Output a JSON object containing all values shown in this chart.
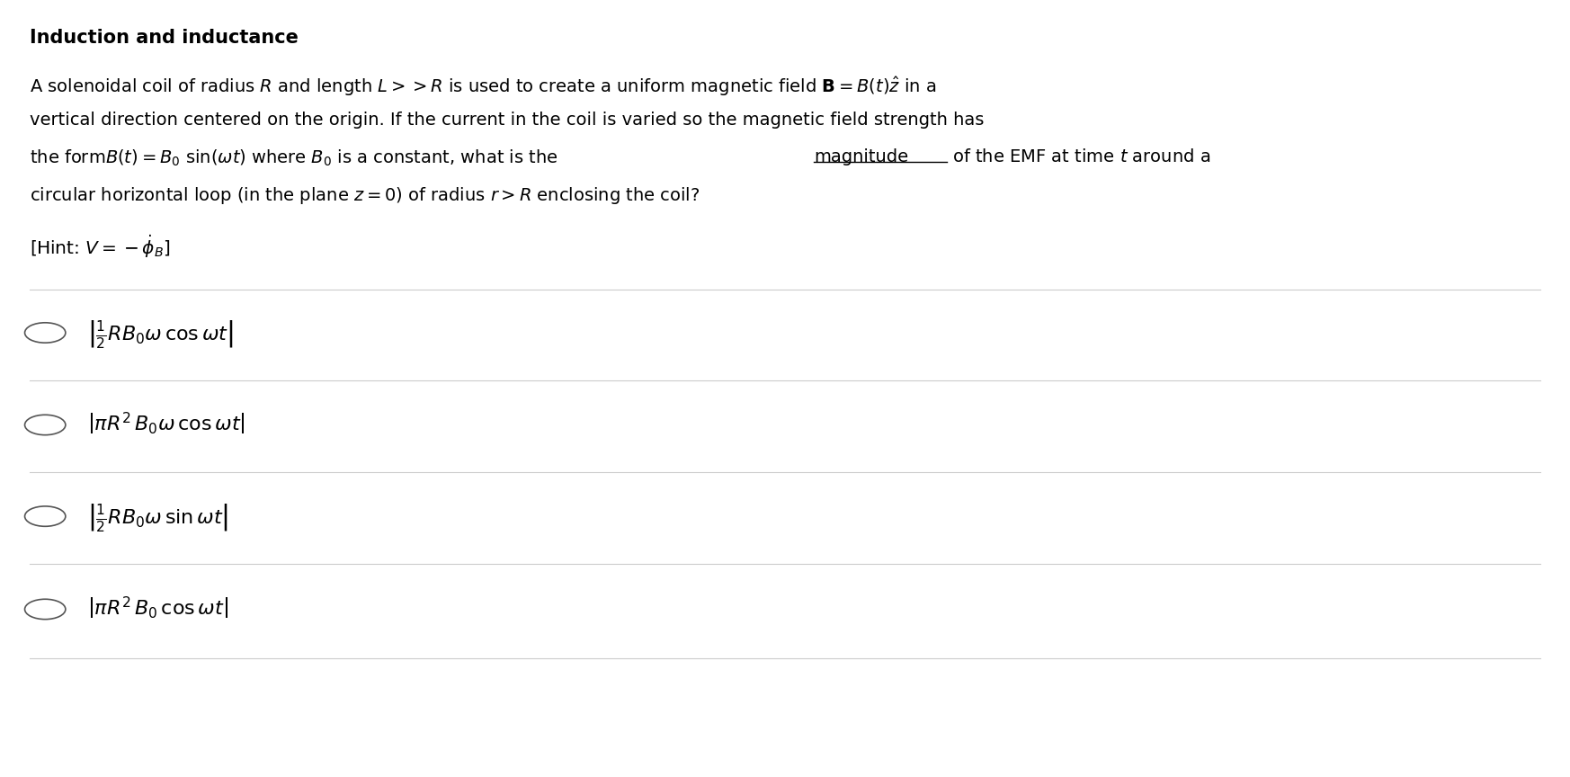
{
  "bg_color": "#ffffff",
  "title": "Induction and inductance",
  "figsize": [
    17.46,
    8.64
  ],
  "dpi": 100,
  "title_fontsize": 15,
  "body_fontsize": 14,
  "hint_fontsize": 14.5,
  "option_fontsize": 16,
  "sep_color": "#cccccc",
  "sep_lw": 0.8,
  "circle_color": "white",
  "circle_edge": "#555555",
  "text_color": "black"
}
